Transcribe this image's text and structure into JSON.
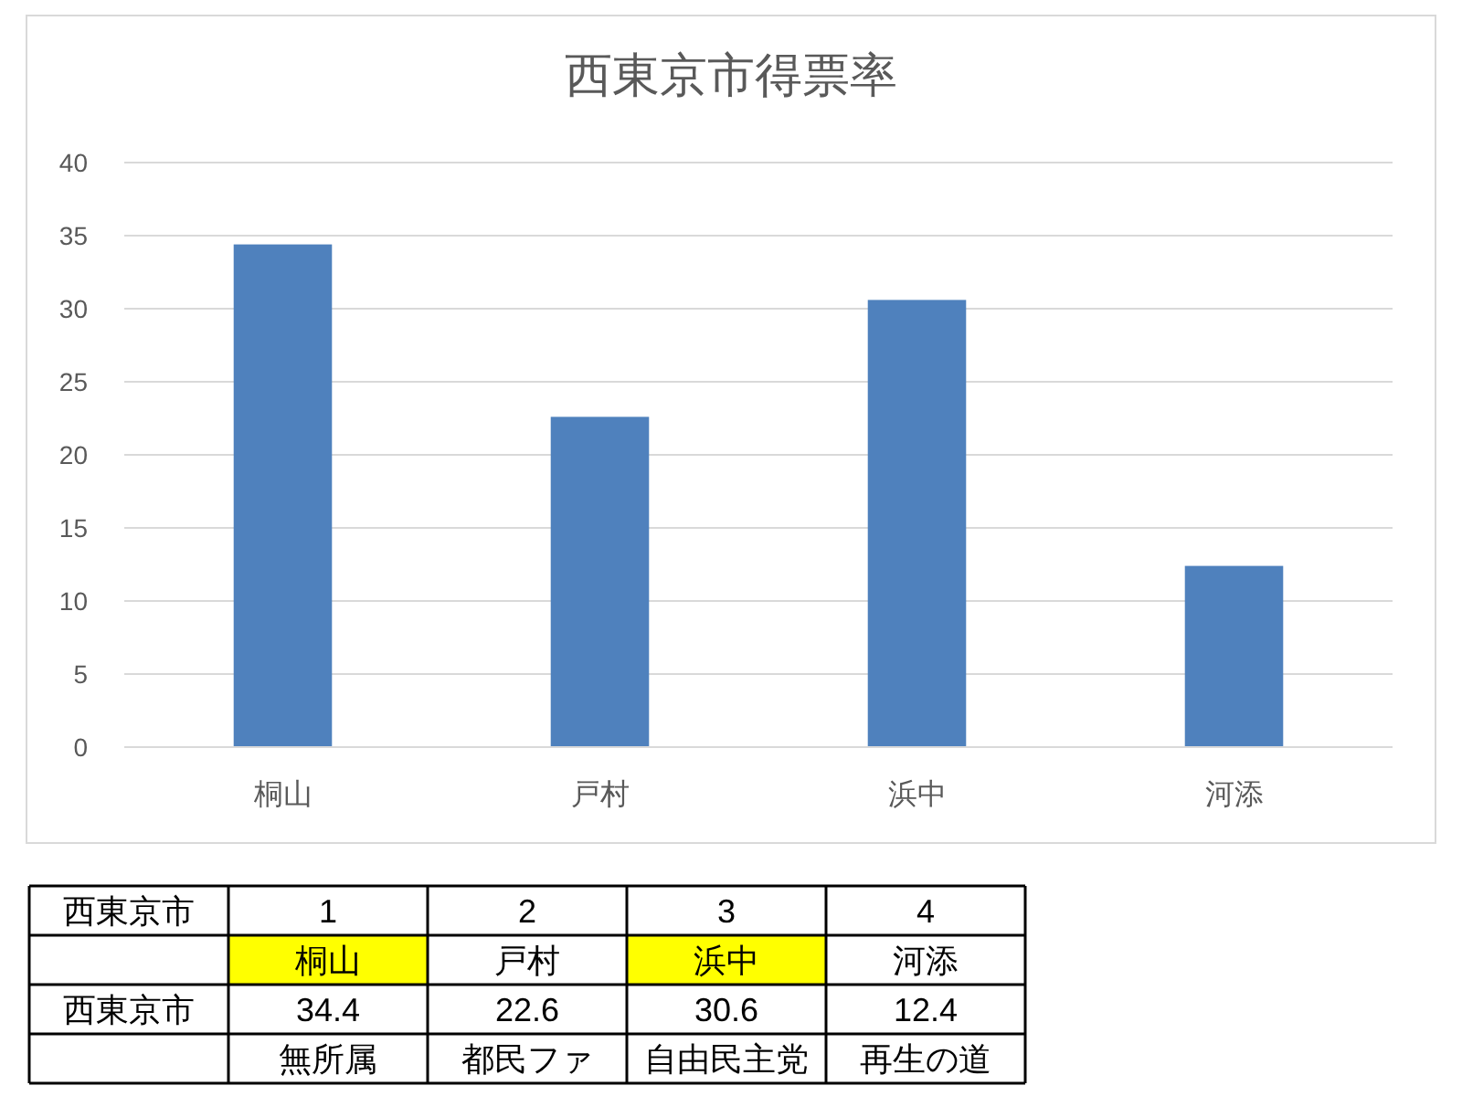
{
  "chart_data": {
    "type": "bar",
    "title": "西東京市得票率",
    "categories": [
      "桐山",
      "戸村",
      "浜中",
      "河添"
    ],
    "values": [
      34.4,
      22.6,
      30.6,
      12.4
    ],
    "color": "#4f81bd",
    "ylim": [
      0,
      40
    ],
    "yticks": [
      0,
      5,
      10,
      15,
      20,
      25,
      30,
      35,
      40
    ],
    "grid": "y",
    "annotations": [
      "西東京市",
      "1",
      "2",
      "3",
      "4",
      "西東京市",
      "34.4",
      "22.6",
      "30.6",
      "12.4",
      "無所属",
      "都民ファ",
      "自由民主党",
      "再生の道"
    ]
  }
}
